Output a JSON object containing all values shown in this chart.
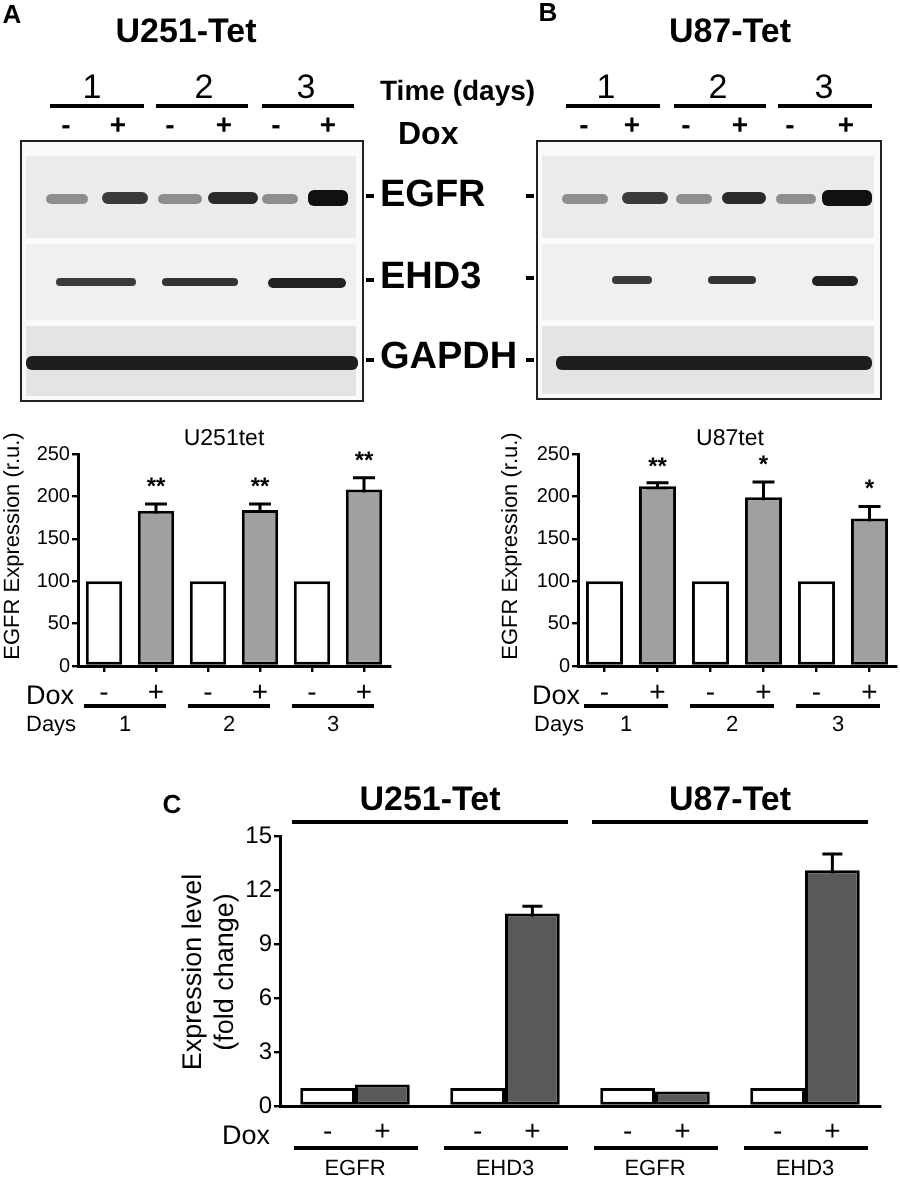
{
  "chart_data": [
    {
      "type": "other",
      "title": "U251-Tet",
      "annotations": [
        "A",
        "1",
        "2",
        "3",
        "-",
        "+",
        "-",
        "+",
        "-",
        "+",
        "Time (days)",
        "Dox",
        "EGFR",
        "EHD3",
        "GAPDH"
      ]
    },
    {
      "type": "other",
      "title": "U87-Tet",
      "annotations": [
        "B",
        "1",
        "2",
        "3",
        "-",
        "+",
        "-",
        "+",
        "-",
        "+"
      ]
    },
    {
      "type": "bar",
      "title": "U251tet",
      "ylabel": "EGFR Expression (r.u.)",
      "categories": [
        "-",
        "+",
        "-",
        "+",
        "-",
        "+"
      ],
      "values": [
        100,
        183,
        100,
        184,
        100,
        208
      ],
      "colors": [
        "#ffffff",
        "#a0a0a0",
        "#ffffff",
        "#a0a0a0",
        "#ffffff",
        "#a0a0a0"
      ],
      "errors": [
        null,
        8,
        null,
        7,
        null,
        14
      ],
      "ylim": [
        0,
        250
      ],
      "yticks": [
        0,
        50,
        100,
        150,
        200,
        250
      ],
      "annotations": [
        "Dox",
        "Days",
        "1",
        "2",
        "3",
        "**",
        "**",
        "**"
      ]
    },
    {
      "type": "bar",
      "title": "U87tet",
      "ylabel": "EGFR Expression (r.u.)",
      "categories": [
        "-",
        "+",
        "-",
        "+",
        "-",
        "+"
      ],
      "values": [
        100,
        212,
        100,
        199,
        100,
        174
      ],
      "colors": [
        "#ffffff",
        "#a0a0a0",
        "#ffffff",
        "#a0a0a0",
        "#ffffff",
        "#a0a0a0"
      ],
      "errors": [
        null,
        4,
        null,
        18,
        null,
        14
      ],
      "ylim": [
        0,
        250
      ],
      "yticks": [
        0,
        50,
        100,
        150,
        200,
        250
      ],
      "annotations": [
        "Dox",
        "Days",
        "1",
        "2",
        "3",
        "**",
        "*",
        "*"
      ]
    },
    {
      "type": "bar",
      "ylabel": "Expression level (fold change)",
      "categories": [
        "EGFR",
        "EHD3",
        "EGFR",
        "EHD3"
      ],
      "series": [
        {
          "name": "-",
          "color": "#ffffff",
          "values": [
            1,
            1,
            1,
            1
          ]
        },
        {
          "name": "+",
          "color": "#595959",
          "values": [
            1.2,
            10.7,
            0.8,
            13.1
          ],
          "errors": [
            null,
            0.4,
            null,
            0.9
          ]
        }
      ],
      "ylim": [
        0,
        15
      ],
      "yticks": [
        0,
        3,
        6,
        9,
        12,
        15
      ],
      "annotations": [
        "C",
        "U251-Tet",
        "U87-Tet",
        "Dox"
      ]
    }
  ]
}
